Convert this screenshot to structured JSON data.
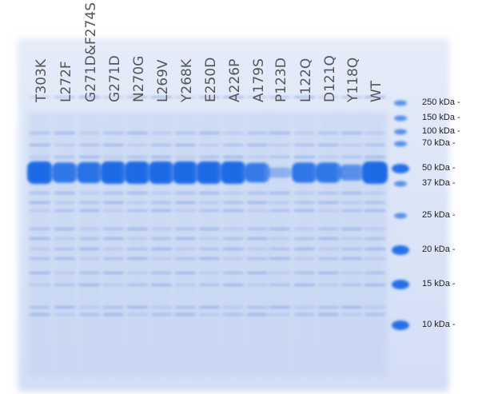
{
  "lanes": [
    "T303K",
    "L272F",
    "G271D&F274S",
    "G271D",
    "N270G",
    "L269V",
    "Y268K",
    "E250D",
    "A226P",
    "A179S",
    "P123D",
    "L122Q",
    "D121Q",
    "Y118Q",
    "WT"
  ],
  "markers": [
    "250 kDa  -",
    "150 kDa  -",
    "100 kDa  -",
    "70 kDa  -",
    "50 kDa  -",
    "37 kDa  -",
    "25 kDa  -",
    "20 kDa  -",
    "15 kDa  -",
    "10 kDa  -"
  ]
}
